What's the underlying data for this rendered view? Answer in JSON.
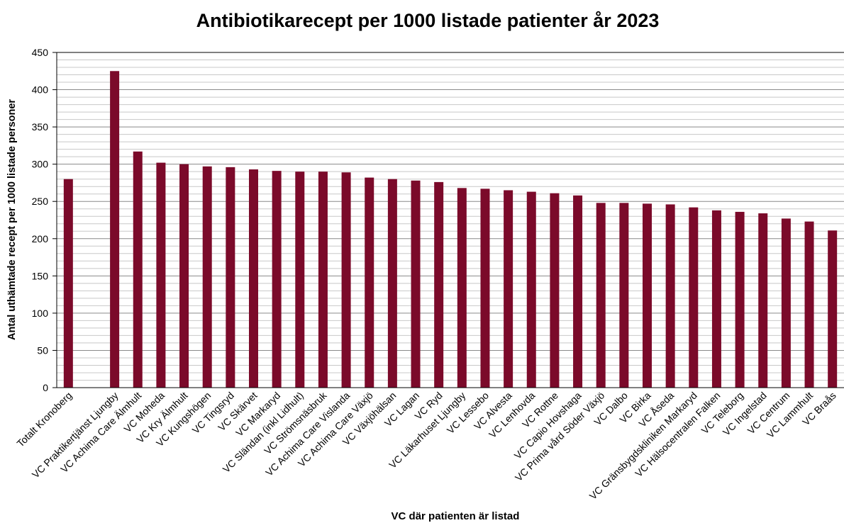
{
  "chart_data": {
    "type": "bar",
    "title": "Antibiotikarecept per 1000 listade patienter år 2023",
    "x_label": "VC  där patienten är listad",
    "y_label": "Antal uthämtade recept per 1000 listade personer",
    "categories": [
      "Totalt Kronoberg",
      null,
      "VC Praktikertjänst Ljungby",
      "VC Achima Care Älmhult",
      "VC Moheda",
      "VC Kry Älmhult",
      "VC Kungshögen",
      "VC Tingsryd",
      "VC Skärvet",
      "VC Markaryd",
      "VC Sländan (inkl Lidhult)",
      "VC Strömsnäsbruk",
      "VC Achima Care Vislanda",
      "VC Achima Care Växjö",
      "VC Växjöhälsan",
      "VC Lagan",
      "VC Ryd",
      "VC Läkarhuset Ljungby",
      "VC Lessebo",
      "VC Alvesta",
      "VC Lenhovda",
      "VC Rottne",
      "VC Capio Hovshaga",
      "VC Prima vård Söder Växjö",
      "VC Dalbo",
      "VC Birka",
      "VC Åseda",
      "VC Gränsbygdskliniken Markaryd",
      "VC Hälsocentralen Falken",
      "VC Teleborg",
      "VC Ingelstad",
      "VC Centrum",
      "VC Lammhult",
      "VC Braås"
    ],
    "values": [
      280,
      null,
      425,
      317,
      302,
      300,
      297,
      296,
      293,
      291,
      290,
      290,
      289,
      282,
      280,
      278,
      276,
      268,
      267,
      265,
      263,
      261,
      258,
      248,
      248,
      247,
      246,
      242,
      238,
      236,
      234,
      227,
      223,
      211
    ],
    "color": "#7b0a2a",
    "ylim": [
      0,
      450
    ],
    "yticks": [
      0,
      50,
      100,
      150,
      200,
      250,
      300,
      350,
      400,
      450
    ],
    "y_minor_ticks": [
      10,
      20,
      30,
      40,
      60,
      70,
      80,
      90,
      110,
      120,
      130,
      140,
      160,
      170,
      180,
      190,
      210,
      220,
      230,
      240,
      260,
      270,
      280,
      290,
      310,
      320,
      330,
      340,
      360,
      370,
      380,
      390,
      410,
      420,
      430,
      440
    ],
    "grid": true
  }
}
